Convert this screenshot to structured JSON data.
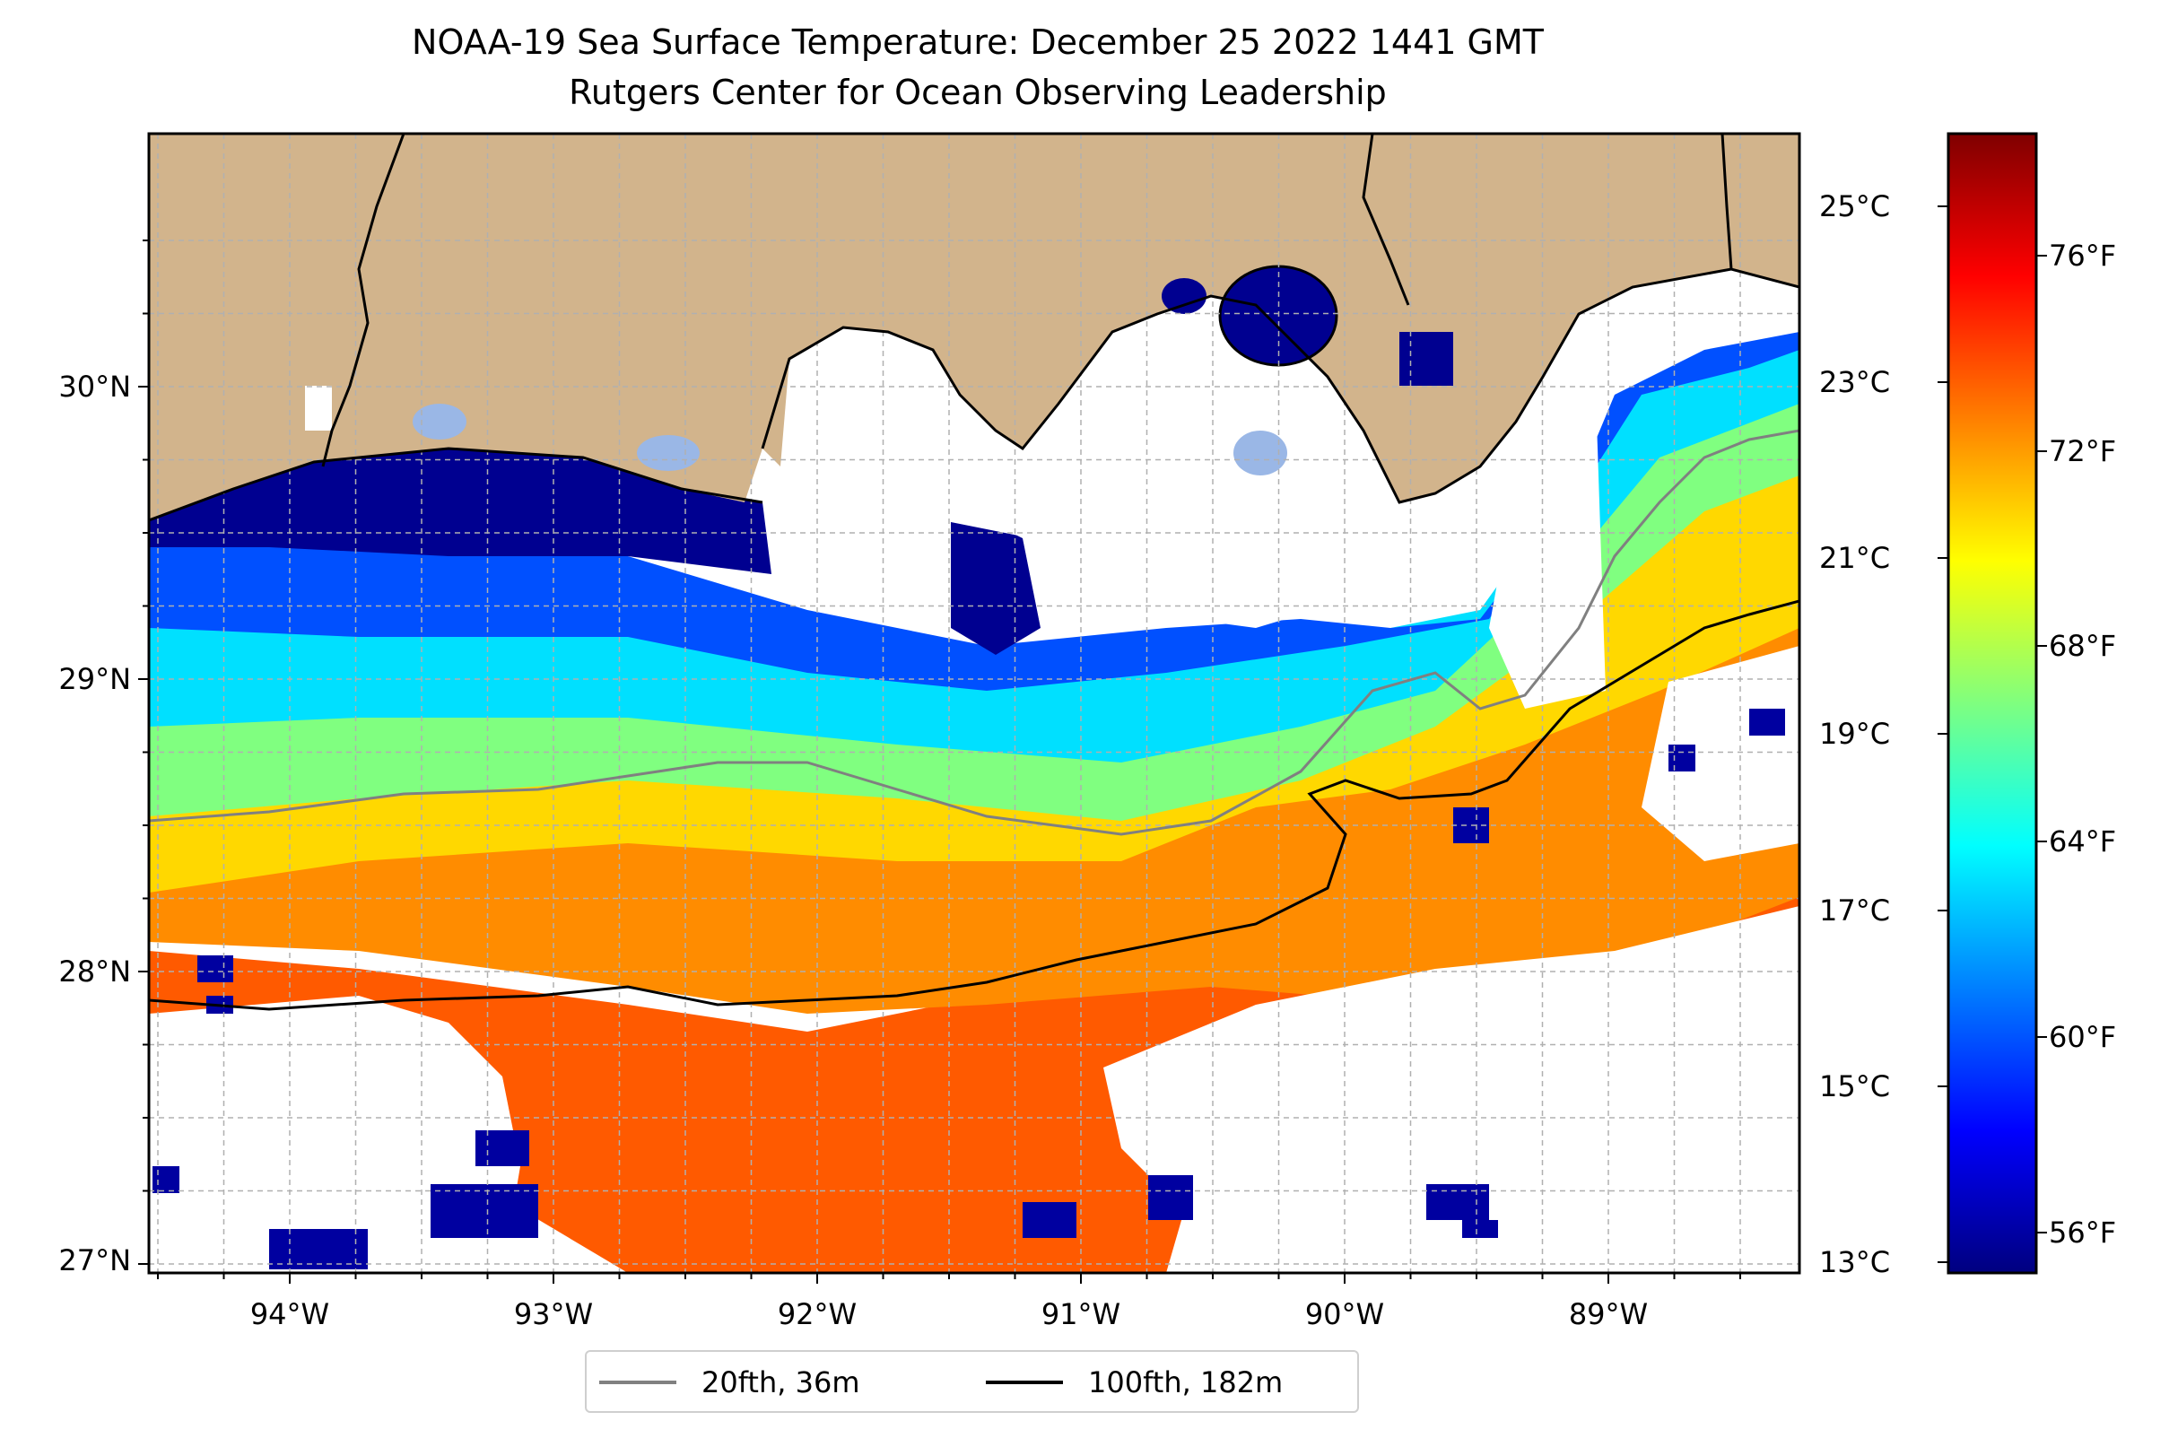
{
  "title": {
    "line1": "NOAA-19 Sea Surface Temperature: December 25 2022 1441 GMT",
    "line2": "Rutgers Center for Ocean Observing Leadership"
  },
  "map": {
    "lon_ticks": [
      "94°W",
      "93°W",
      "92°W",
      "91°W",
      "90°W",
      "89°W"
    ],
    "lat_ticks": [
      "30°N",
      "29°N",
      "28°N",
      "27°N"
    ],
    "colors": {
      "land": "#d2b48c",
      "no_data": "#ffffff",
      "coast": "#000000",
      "grid": "#b0b0b0"
    }
  },
  "colorbar": {
    "celsius_ticks": [
      "25°C",
      "23°C",
      "21°C",
      "19°C",
      "17°C",
      "15°C",
      "13°C"
    ],
    "fahrenheit_ticks": [
      "76°F",
      "72°F",
      "68°F",
      "64°F",
      "60°F",
      "56°F"
    ],
    "colormap": [
      "#00007f",
      "#0000ff",
      "#007fff",
      "#00ffff",
      "#7fff7f",
      "#ffff00",
      "#ff7f00",
      "#ff0000",
      "#7f0000"
    ]
  },
  "legend": {
    "items": [
      {
        "label": "20fth, 36m",
        "color": "#808080"
      },
      {
        "label": "100fth, 182m",
        "color": "#000000"
      }
    ]
  }
}
